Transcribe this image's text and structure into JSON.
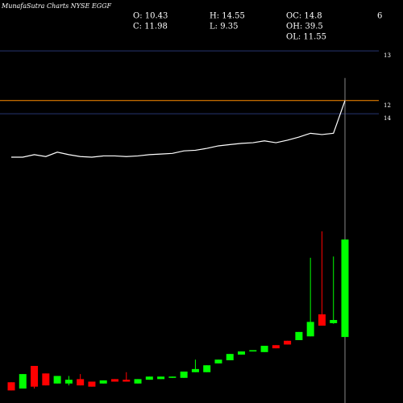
{
  "chart_data": {
    "type": "candlestick",
    "title": "MunafaSutra Charts NYSE EGGF",
    "stats": [
      "O: 10.43",
      "H: 14.55",
      "OC: 14.8",
      "6",
      "C: 11.98",
      "L: 9.35",
      "OH: 39.5",
      "OL: 11.55"
    ],
    "ylim": [
      9.38,
      15.79
    ],
    "up_color": "#00ff00",
    "down_color": "#ff0000",
    "open": [
      9.71,
      9.61,
      9.97,
      9.85,
      9.69,
      9.69,
      9.76,
      9.72,
      9.69,
      9.76,
      9.75,
      9.69,
      9.75,
      9.76,
      9.78,
      9.78,
      9.87,
      9.87,
      10.01,
      10.06,
      10.15,
      10.2,
      10.19,
      10.3,
      10.37,
      10.38,
      10.44,
      10.79,
      10.65,
      10.43
    ],
    "high": [
      9.71,
      9.84,
      9.97,
      9.85,
      9.81,
      9.81,
      9.84,
      9.72,
      9.74,
      9.76,
      9.87,
      9.76,
      9.8,
      9.8,
      9.8,
      9.88,
      10.07,
      9.98,
      10.07,
      10.16,
      10.2,
      10.22,
      10.29,
      10.3,
      10.37,
      10.51,
      11.69,
      12.11,
      11.71,
      14.55
    ],
    "low": [
      9.58,
      9.61,
      9.61,
      9.66,
      9.69,
      9.66,
      9.66,
      9.64,
      9.69,
      9.72,
      9.72,
      9.69,
      9.75,
      9.76,
      9.78,
      9.78,
      9.87,
      9.87,
      10.01,
      10.06,
      10.15,
      10.2,
      10.19,
      10.25,
      10.31,
      10.38,
      10.44,
      10.61,
      10.64,
      9.35
    ],
    "close": [
      9.58,
      9.84,
      9.64,
      9.66,
      9.81,
      9.75,
      9.66,
      9.64,
      9.74,
      9.72,
      9.72,
      9.76,
      9.8,
      9.8,
      9.8,
      9.88,
      9.92,
      9.98,
      10.07,
      10.16,
      10.2,
      10.22,
      10.29,
      10.25,
      10.31,
      10.51,
      10.67,
      10.61,
      10.7,
      11.98
    ],
    "line": {
      "color": "#ffffff",
      "values": [
        13.29,
        13.29,
        13.33,
        13.3,
        13.37,
        13.33,
        13.3,
        13.29,
        13.31,
        13.31,
        13.3,
        13.31,
        13.33,
        13.34,
        13.35,
        13.39,
        13.4,
        13.43,
        13.47,
        13.49,
        13.51,
        13.52,
        13.55,
        13.52,
        13.56,
        13.61,
        13.67,
        13.65,
        13.67,
        14.19
      ]
    },
    "hlines": [
      {
        "label": "13",
        "value": 14.98,
        "color": "#27346f"
      },
      {
        "label": "12",
        "value": 14.19,
        "color": "#ff8c00"
      },
      {
        "label": "14",
        "value": 13.98,
        "color": "#27346f"
      }
    ]
  }
}
